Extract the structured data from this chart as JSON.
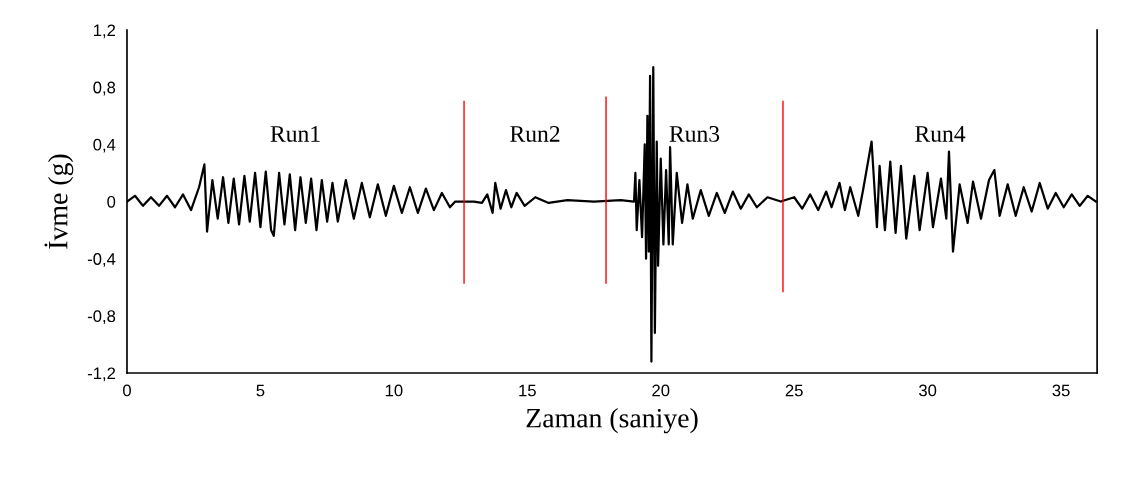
{
  "chart_data": {
    "type": "line",
    "xlabel": "Zaman (saniye)",
    "ylabel": "İvme (g)",
    "xlim": [
      0,
      36.35
    ],
    "xticks": [
      0,
      5,
      10,
      15,
      20,
      25,
      30,
      35
    ],
    "ylim": [
      -1.2,
      1.2
    ],
    "yticks": [
      {
        "value": -1.2,
        "label": "-1,2"
      },
      {
        "value": -0.8,
        "label": "-0,8"
      },
      {
        "value": -0.4,
        "label": "-0,4"
      },
      {
        "value": 0,
        "label": "0"
      },
      {
        "value": 0.4,
        "label": "0,4"
      },
      {
        "value": 0.8,
        "label": "0,8"
      },
      {
        "value": 1.2,
        "label": "1,2"
      }
    ],
    "grid": false,
    "marker": "none",
    "line_style": "solid",
    "series": [
      {
        "color": "#000000",
        "x": [
          0,
          0.3,
          0.6,
          0.9,
          1.2,
          1.5,
          1.8,
          2.1,
          2.4,
          2.7,
          2.9,
          3.0,
          3.2,
          3.4,
          3.6,
          3.8,
          4.0,
          4.2,
          4.4,
          4.6,
          4.8,
          5.0,
          5.2,
          5.4,
          5.5,
          5.7,
          5.9,
          6.1,
          6.3,
          6.5,
          6.7,
          6.9,
          7.1,
          7.3,
          7.5,
          7.7,
          7.9,
          8.2,
          8.5,
          8.8,
          9.1,
          9.4,
          9.7,
          10.0,
          10.3,
          10.6,
          10.9,
          11.2,
          11.5,
          11.8,
          12.1,
          12.3,
          13.0,
          13.3,
          13.5,
          13.7,
          13.8,
          14.0,
          14.2,
          14.4,
          14.6,
          14.9,
          15.3,
          15.8,
          16.5,
          17.5,
          18.5,
          19.0,
          19.05,
          19.1,
          19.2,
          19.3,
          19.4,
          19.45,
          19.5,
          19.55,
          19.6,
          19.65,
          19.72,
          19.78,
          19.85,
          19.9,
          20.0,
          20.1,
          20.2,
          20.3,
          20.35,
          20.45,
          20.6,
          20.8,
          21.0,
          21.2,
          21.5,
          21.8,
          22.1,
          22.4,
          22.7,
          23.0,
          23.3,
          23.6,
          24.0,
          24.5,
          25.0,
          25.3,
          25.6,
          25.9,
          26.2,
          26.4,
          26.7,
          26.9,
          27.1,
          27.4,
          27.6,
          27.9,
          28.1,
          28.2,
          28.4,
          28.6,
          28.8,
          29.0,
          29.2,
          29.5,
          29.7,
          30.0,
          30.2,
          30.5,
          30.7,
          30.8,
          30.95,
          31.2,
          31.5,
          31.7,
          32.0,
          32.3,
          32.5,
          32.7,
          33.0,
          33.3,
          33.6,
          33.9,
          34.2,
          34.5,
          34.8,
          35.1,
          35.4,
          35.7,
          36.0,
          36.3
        ],
        "values": [
          0,
          0.04,
          -0.03,
          0.03,
          -0.03,
          0.04,
          -0.04,
          0.05,
          -0.06,
          0.1,
          0.26,
          -0.21,
          0.15,
          -0.12,
          0.17,
          -0.15,
          0.16,
          -0.16,
          0.18,
          -0.14,
          0.2,
          -0.18,
          0.21,
          -0.2,
          -0.24,
          0.2,
          -0.16,
          0.19,
          -0.2,
          0.17,
          -0.15,
          0.16,
          -0.2,
          0.15,
          -0.14,
          0.13,
          -0.14,
          0.15,
          -0.12,
          0.13,
          -0.11,
          0.12,
          -0.1,
          0.11,
          -0.08,
          0.1,
          -0.08,
          0.09,
          -0.06,
          0.06,
          -0.04,
          0,
          0,
          -0.01,
          0.05,
          -0.08,
          0.13,
          -0.05,
          0.08,
          -0.04,
          0.06,
          -0.03,
          0.03,
          -0.01,
          0.01,
          0,
          0.01,
          0,
          0.2,
          -0.2,
          0.15,
          -0.25,
          0.4,
          -0.4,
          0.6,
          -0.35,
          0.88,
          -1.12,
          0.94,
          -0.92,
          0.42,
          -0.45,
          0.3,
          -0.3,
          0.22,
          -0.3,
          0.38,
          -0.3,
          0.2,
          -0.15,
          0.12,
          -0.12,
          0.08,
          -0.1,
          0.06,
          -0.08,
          0.07,
          -0.05,
          0.05,
          -0.04,
          0.03,
          0,
          0.03,
          -0.05,
          0.05,
          -0.06,
          0.07,
          -0.04,
          0.13,
          -0.06,
          0.1,
          -0.1,
          0.1,
          0.42,
          -0.18,
          0.25,
          -0.2,
          0.28,
          -0.22,
          0.25,
          -0.26,
          0.18,
          -0.2,
          0.2,
          -0.18,
          0.16,
          -0.12,
          0.35,
          -0.35,
          0.12,
          -0.15,
          0.14,
          -0.12,
          0.15,
          0.22,
          -0.1,
          0.12,
          -0.1,
          0.1,
          -0.07,
          0.13,
          -0.05,
          0.06,
          -0.04,
          0.05,
          -0.03,
          0.04,
          0
        ]
      },
      {
        "color": "#ff0000",
        "x": [
          12.63,
          12.63
        ],
        "values": [
          0.7,
          -0.57
        ]
      },
      {
        "color": "#ff0000",
        "x": [
          17.95,
          17.95
        ],
        "values": [
          0.73,
          -0.57
        ]
      },
      {
        "color": "#ff0000",
        "x": [
          24.58,
          24.58
        ],
        "values": [
          0.7,
          -0.63
        ]
      }
    ],
    "annotations": [
      "Run1",
      "Run2",
      "Run3",
      "Run4"
    ]
  }
}
